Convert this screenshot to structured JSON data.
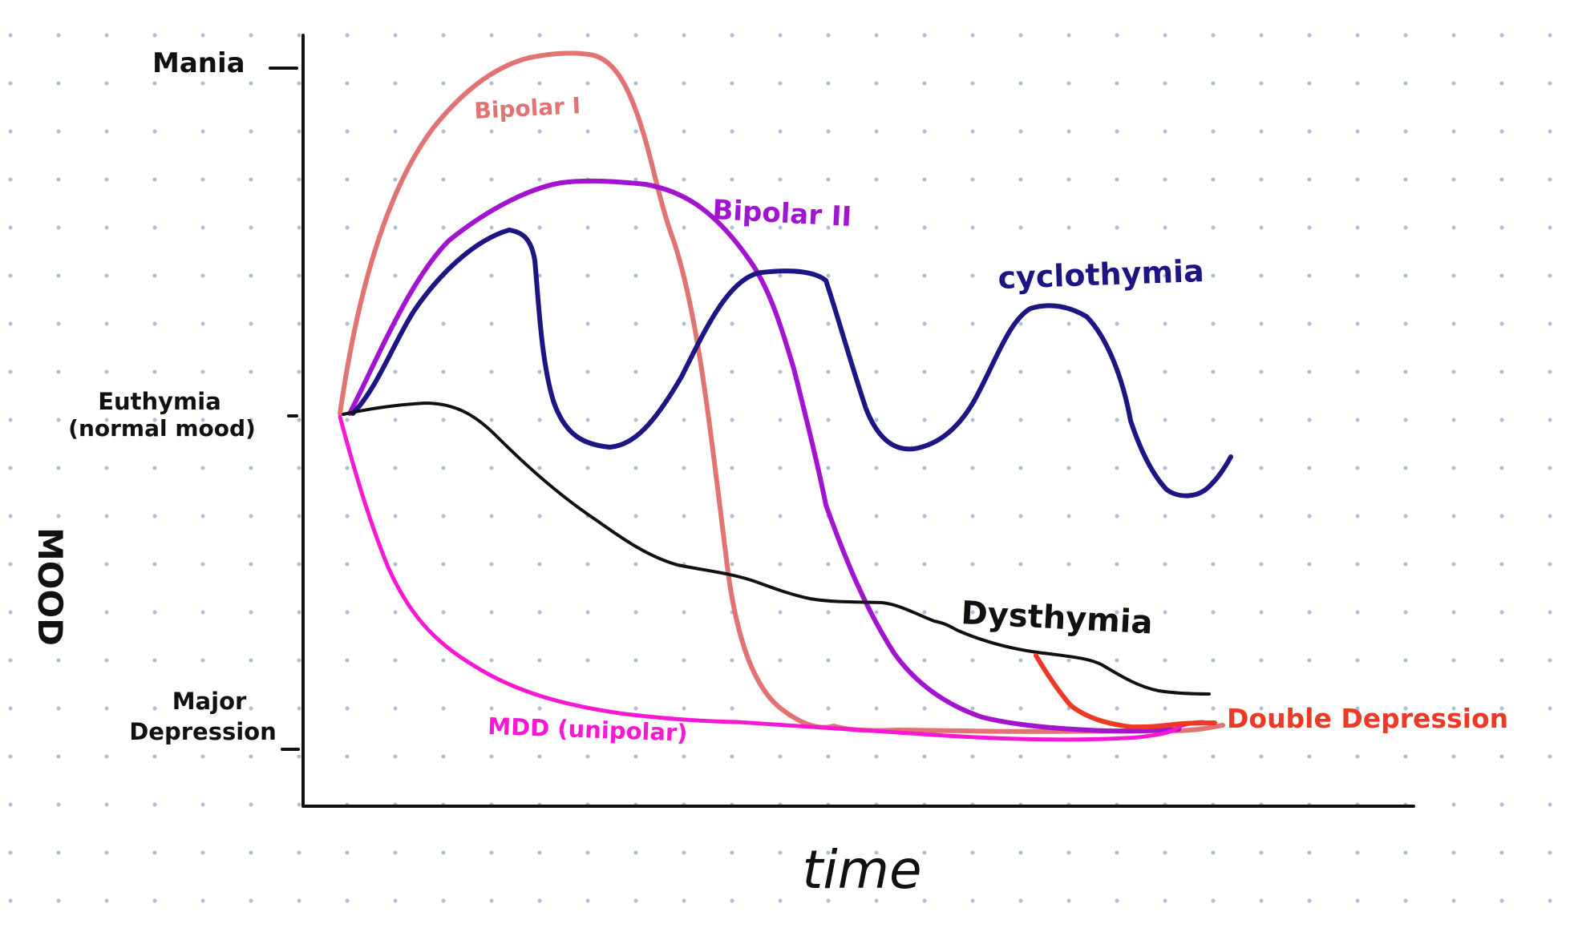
{
  "diagram": {
    "x_axis_label": "time",
    "y_axis_label": "MOOD",
    "y_levels": {
      "mania": "Mania",
      "euthymia_line1": "Euthymia",
      "euthymia_line2": "(normal mood)",
      "major_depression_line1": "Major",
      "major_depression_line2": "Depression"
    },
    "curves": [
      {
        "id": "bipolar_1",
        "label": "Bipolar I",
        "color": "#e27373"
      },
      {
        "id": "bipolar_2",
        "label": "Bipolar II",
        "color": "#a214cf"
      },
      {
        "id": "cyclothymia",
        "label": "cyclothymia",
        "color": "#1d1583"
      },
      {
        "id": "dysthymia",
        "label": "Dysthymia",
        "color": "#111111"
      },
      {
        "id": "mdd",
        "label": "MDD (unipolar)",
        "color": "#f618d2"
      },
      {
        "id": "double_depression",
        "label": "Double Depression",
        "color": "#ec3a26"
      }
    ],
    "grid": "dotted",
    "dot_color": "#a9bfd8"
  }
}
